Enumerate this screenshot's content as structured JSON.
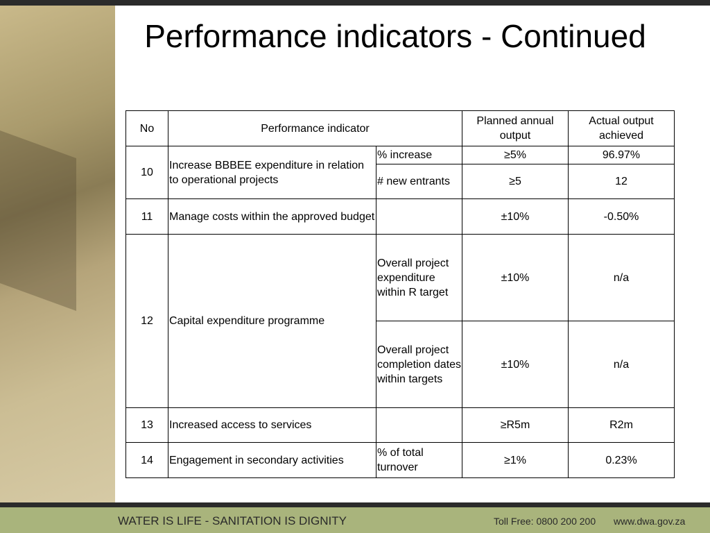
{
  "title": "Performance indicators - Continued",
  "table": {
    "header": [
      "No",
      "Performance indicator",
      "Planned annual output",
      "Actual output achieved"
    ],
    "rows": [
      {
        "no": "10",
        "indicator": "Increase BBBEE expenditure in relation to operational projects",
        "measures": [
          {
            "measure": "% increase",
            "planned": "≥5%",
            "actual": "96.97%"
          },
          {
            "measure": "# new entrants",
            "planned": "≥5",
            "actual": "12"
          }
        ]
      },
      {
        "no": "11",
        "indicator": "Manage costs within the approved budget",
        "measures": [
          {
            "planned": "±10%",
            "actual": "-0.50%"
          }
        ]
      },
      {
        "no": "12",
        "indicator": "Capital expenditure programme",
        "measures": [
          {
            "measure": "Overall project expenditure within R target",
            "planned": "±10%",
            "actual": "n/a"
          },
          {
            "measure": "Overall project completion dates within targets",
            "planned": "±10%",
            "actual": "n/a"
          }
        ]
      },
      {
        "no": "13",
        "indicator": "Increased  access to services",
        "measures": [
          {
            "planned": "≥R5m",
            "actual": "R2m"
          }
        ]
      },
      {
        "no": "14",
        "indicator": "Engagement in secondary activities",
        "measures": [
          {
            "measure": "% of total turnover",
            "planned": "≥1%",
            "actual": "0.23%"
          }
        ]
      }
    ]
  },
  "footer": {
    "slogan": "WATER IS LIFE - SANITATION IS DIGNITY",
    "phone": "Toll Free: 0800 200 200",
    "website": "www.dwa.gov.za"
  }
}
